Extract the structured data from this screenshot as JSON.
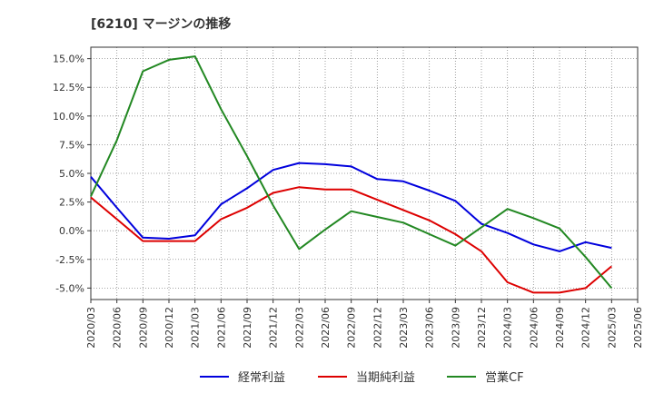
{
  "chart_data": {
    "type": "line",
    "title": "[6210]  マージンの推移",
    "xlabel": "",
    "ylabel": "",
    "ylim": [
      -6.0,
      16.0
    ],
    "y_ticks": [
      15.0,
      12.5,
      10.0,
      7.5,
      5.0,
      2.5,
      0.0,
      -2.5,
      -5.0
    ],
    "y_tick_labels": [
      "15.0%",
      "12.5%",
      "10.0%",
      "7.5%",
      "5.0%",
      "2.5%",
      "0.0%",
      "-2.5%",
      "-5.0%"
    ],
    "grid": true,
    "legend_position": "bottom",
    "x": [
      "2020/03",
      "2020/06",
      "2020/09",
      "2020/12",
      "2021/03",
      "2021/06",
      "2021/09",
      "2021/12",
      "2022/03",
      "2022/06",
      "2022/09",
      "2022/12",
      "2023/03",
      "2023/06",
      "2023/09",
      "2023/12",
      "2024/03",
      "2024/06",
      "2024/09",
      "2024/12",
      "2025/03",
      "2025/06"
    ],
    "series": [
      {
        "name": "経常利益",
        "color": "#0000dd",
        "values": [
          4.7,
          2.0,
          -0.6,
          -0.7,
          -0.4,
          2.3,
          3.7,
          5.3,
          5.9,
          5.8,
          5.6,
          4.5,
          4.3,
          3.5,
          2.6,
          0.6,
          -0.2,
          -1.2,
          -1.8,
          -1.0,
          -1.5,
          null
        ]
      },
      {
        "name": "当期純利益",
        "color": "#dd0000",
        "values": [
          2.9,
          1.0,
          -0.9,
          -0.9,
          -0.9,
          1.0,
          2.0,
          3.3,
          3.8,
          3.6,
          3.6,
          2.7,
          1.8,
          0.9,
          -0.3,
          -1.8,
          -4.5,
          -5.4,
          -5.4,
          -5.0,
          -3.1,
          null
        ]
      },
      {
        "name": "営業CF",
        "color": "#228822",
        "values": [
          3.0,
          7.9,
          13.9,
          14.9,
          15.2,
          10.6,
          6.5,
          2.2,
          -1.6,
          0.1,
          1.7,
          1.2,
          0.7,
          -0.3,
          -1.3,
          0.3,
          1.9,
          1.1,
          0.2,
          -2.3,
          -5.0,
          null
        ]
      }
    ]
  }
}
